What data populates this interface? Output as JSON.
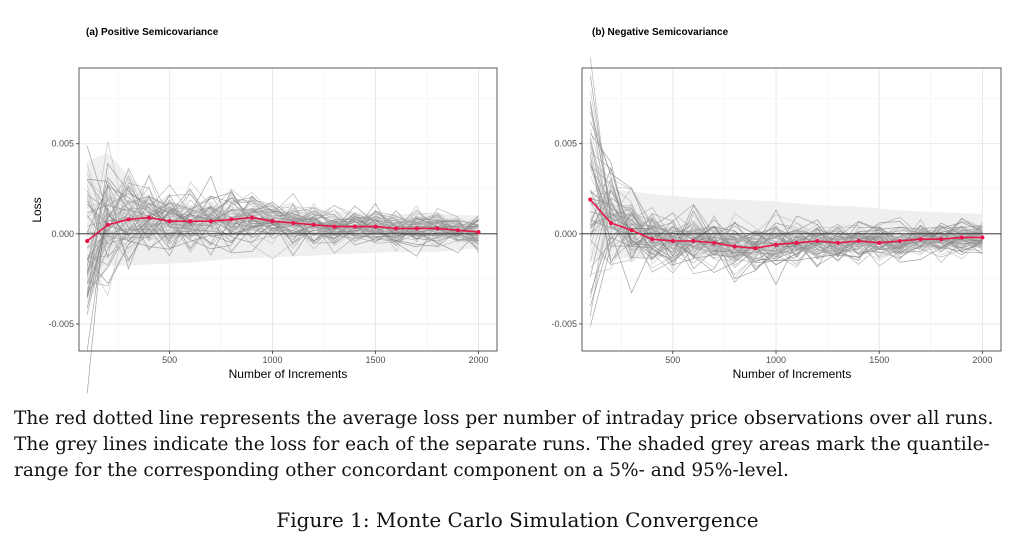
{
  "chart_data": [
    {
      "type": "line",
      "title": "(a) Positive Semicovariance",
      "xlabel": "Number of Increments",
      "ylabel": "Loss",
      "xlim": [
        60,
        2090
      ],
      "ylim": [
        -0.0065,
        0.0092
      ],
      "x_ticks": [
        500,
        1000,
        1500,
        2000
      ],
      "y_ticks": [
        -0.005,
        0.0,
        0.005
      ],
      "x_tick_labels": [
        "500",
        "1000",
        "1500",
        "2000"
      ],
      "y_tick_labels": [
        "-0.005",
        "0.000",
        "0.005"
      ],
      "grid": true,
      "average_series": {
        "color": "#e8174a",
        "x": [
          100,
          200,
          300,
          400,
          500,
          600,
          700,
          800,
          900,
          1000,
          1100,
          1200,
          1300,
          1400,
          1500,
          1600,
          1700,
          1800,
          1900,
          2000
        ],
        "values": [
          -0.0004,
          0.0005,
          0.0008,
          0.0009,
          0.0007,
          0.0007,
          0.0007,
          0.0008,
          0.0009,
          0.0007,
          0.0006,
          0.0005,
          0.0004,
          0.0004,
          0.0004,
          0.0003,
          0.0003,
          0.0003,
          0.0002,
          0.0001
        ]
      },
      "quantile_band": {
        "x": [
          100,
          200,
          400,
          600,
          800,
          1000,
          1200,
          1400,
          1600,
          1800,
          2000
        ],
        "upper": [
          0.004,
          0.0045,
          0.002,
          0.0016,
          0.0015,
          0.0014,
          0.0013,
          0.0012,
          0.0011,
          0.0011,
          0.001
        ],
        "lower": [
          -0.004,
          -0.0018,
          -0.0017,
          -0.0016,
          -0.0014,
          -0.0013,
          -0.0012,
          -0.0011,
          -0.001,
          -0.001,
          -0.0008
        ]
      },
      "runs_spread": {
        "x": [
          100,
          200,
          300,
          400,
          500,
          600,
          700,
          800,
          900,
          1000,
          1100,
          1200,
          1300,
          1400,
          1500,
          1600,
          1700,
          1800,
          1900,
          2000
        ],
        "sd": [
          0.0035,
          0.0018,
          0.0012,
          0.001,
          0.0009,
          0.00085,
          0.0008,
          0.00078,
          0.00075,
          0.0007,
          0.00068,
          0.00065,
          0.00062,
          0.0006,
          0.00058,
          0.00055,
          0.00052,
          0.0005,
          0.00048,
          0.00045
        ],
        "n_runs": 60
      }
    },
    {
      "type": "line",
      "title": "(b) Negative Semicovariance",
      "xlabel": "Number of Increments",
      "ylabel": "",
      "xlim": [
        60,
        2090
      ],
      "ylim": [
        -0.0065,
        0.0092
      ],
      "x_ticks": [
        500,
        1000,
        1500,
        2000
      ],
      "y_ticks": [
        -0.005,
        0.0,
        0.005
      ],
      "x_tick_labels": [
        "500",
        "1000",
        "1500",
        "2000"
      ],
      "y_tick_labels": [
        "-0.005",
        "0.000",
        "0.005"
      ],
      "grid": true,
      "average_series": {
        "color": "#e8174a",
        "x": [
          100,
          200,
          300,
          400,
          500,
          600,
          700,
          800,
          900,
          1000,
          1100,
          1200,
          1300,
          1400,
          1500,
          1600,
          1700,
          1800,
          1900,
          2000
        ],
        "values": [
          0.0019,
          0.0006,
          0.0002,
          -0.0003,
          -0.0004,
          -0.0004,
          -0.0005,
          -0.0007,
          -0.0008,
          -0.0006,
          -0.0005,
          -0.0004,
          -0.0005,
          -0.0004,
          -0.0005,
          -0.0004,
          -0.0003,
          -0.0003,
          -0.0002,
          -0.0002
        ]
      },
      "quantile_band": {
        "x": [
          100,
          200,
          400,
          600,
          800,
          1000,
          1200,
          1400,
          1600,
          1800,
          2000
        ],
        "upper": [
          0.002,
          0.0025,
          0.0022,
          0.002,
          0.0019,
          0.0018,
          0.0016,
          0.0015,
          0.0013,
          0.0012,
          0.0011
        ],
        "lower": [
          -0.0015,
          -0.0014,
          -0.0013,
          -0.0012,
          -0.0012,
          -0.0011,
          -0.001,
          -0.0009,
          -0.0009,
          -0.0008,
          -0.0008
        ]
      },
      "runs_spread": {
        "x": [
          100,
          200,
          300,
          400,
          500,
          600,
          700,
          800,
          900,
          1000,
          1100,
          1200,
          1300,
          1400,
          1500,
          1600,
          1700,
          1800,
          1900,
          2000
        ],
        "sd": [
          0.0035,
          0.0016,
          0.0011,
          0.0009,
          0.00085,
          0.0008,
          0.00078,
          0.00075,
          0.00072,
          0.0007,
          0.00068,
          0.00065,
          0.00062,
          0.0006,
          0.00058,
          0.00055,
          0.00052,
          0.0005,
          0.00048,
          0.00045
        ],
        "n_runs": 60
      }
    }
  ],
  "caption": {
    "line1": "The red dotted line represents the average loss per number of intraday price observations over all runs.",
    "line2": "The grey lines indicate the loss for each of the separate runs. The shaded grey areas mark the quantile-",
    "line3": "range for the corresponding other concordant component on a 5%- and 95%-level."
  },
  "figure_label": "Figure 1: Monte Carlo Simulation Convergence"
}
